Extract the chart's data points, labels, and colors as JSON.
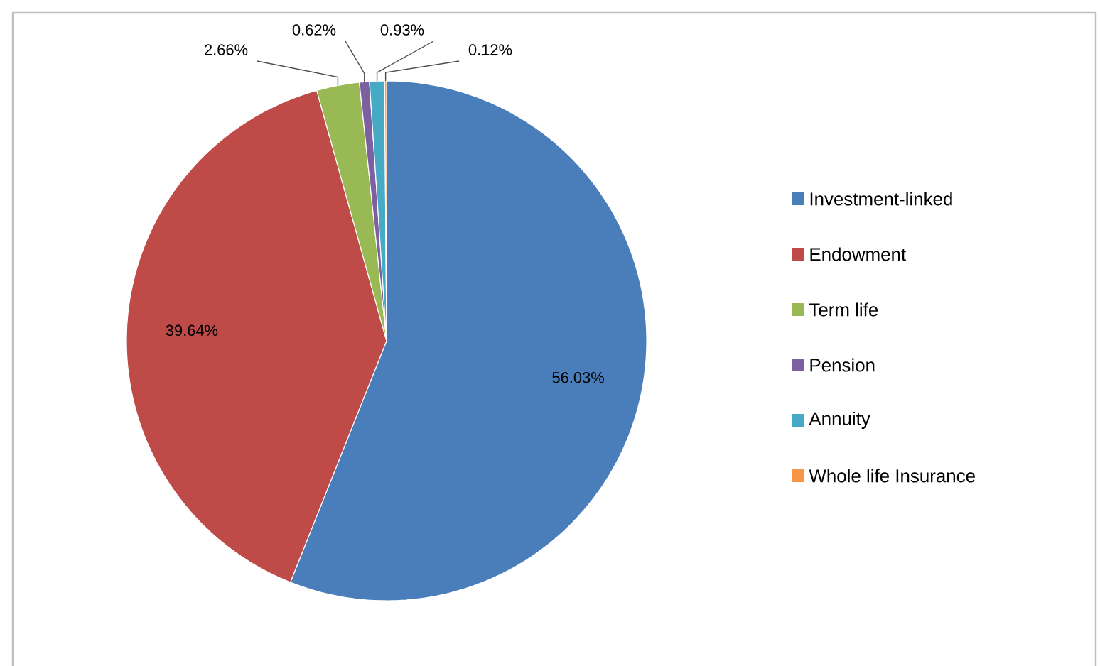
{
  "chart_data": {
    "type": "pie",
    "categories": [
      "Investment-linked",
      "Endowment",
      "Term life",
      "Pension",
      "Annuity",
      "Whole life Insurance"
    ],
    "values": [
      56.03,
      39.64,
      2.66,
      0.62,
      0.93,
      0.12
    ],
    "colors": [
      "#4a7ebb",
      "#be4b48",
      "#98b954",
      "#7d60a0",
      "#46aac5",
      "#f79646"
    ],
    "value_labels": [
      "56.03%",
      "39.64%",
      "2.66%",
      "0.62%",
      "0.93%",
      "0.12%"
    ],
    "legend": "right"
  }
}
